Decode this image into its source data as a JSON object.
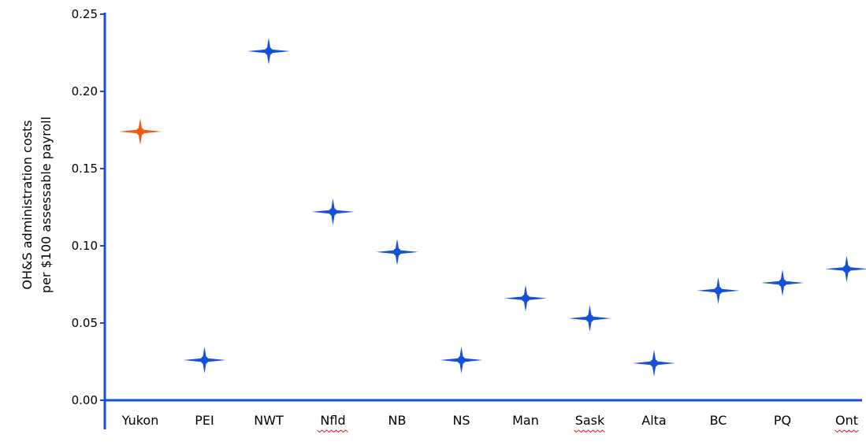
{
  "chart_data": {
    "type": "scatter",
    "title": "",
    "xlabel": "",
    "ylabel_lines": [
      "OH&S administration costs",
      "per $100 assessable payroll"
    ],
    "categories": [
      "Yukon",
      "PEI",
      "NWT",
      "Nfld",
      "NB",
      "NS",
      "Man",
      "Sask",
      "Alta",
      "BC",
      "PQ",
      "Ont"
    ],
    "values": [
      0.174,
      0.026,
      0.226,
      0.122,
      0.096,
      0.026,
      0.066,
      0.053,
      0.024,
      0.071,
      0.076,
      0.085
    ],
    "point_colors": [
      "#f05a14",
      "#1550d6",
      "#1550d6",
      "#1550d6",
      "#1550d6",
      "#1550d6",
      "#1550d6",
      "#1550d6",
      "#1550d6",
      "#1550d6",
      "#1550d6",
      "#1550d6"
    ],
    "ylim": [
      0,
      0.25
    ],
    "yticks": [
      "0.00",
      "0.05",
      "0.10",
      "0.15",
      "0.20",
      "0.25"
    ],
    "marker": "four-point-star",
    "spellcheck_underlined": [
      "Nfld",
      "Sask",
      "Ont"
    ],
    "grid": false,
    "legend": "none",
    "colors": {
      "highlight": "#f05a14",
      "default": "#1550d6",
      "axis": "#1550d6",
      "spellcheck": "#d42020"
    }
  }
}
